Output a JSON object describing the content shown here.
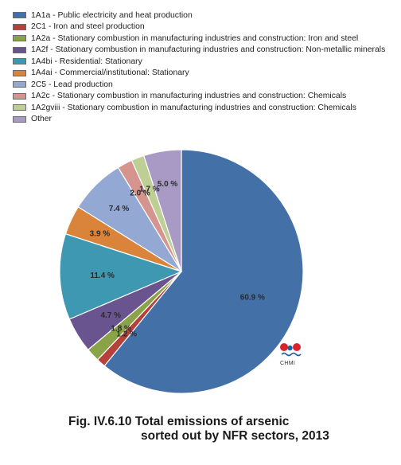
{
  "chart_data": {
    "type": "pie",
    "legend_position": "top",
    "categories": [
      "1A1a - Public electricity and heat production",
      "2C1 - Iron and steel production",
      "1A2a - Stationary combustion in manufacturing industries and construction: Iron and steel",
      "1A2f - Stationary combustion in manufacturing industries and construction: Non-metallic minerals",
      "1A4bi - Residential: Stationary",
      "1A4ai - Commercial/institutional: Stationary",
      "2C5 - Lead production",
      "1A2c - Stationary combustion in manufacturing industries and construction: Chemicals",
      "1A2gviii - Stationary combustion in manufacturing industries and construction: Chemicals",
      "Other"
    ],
    "values": [
      60.9,
      1.2,
      1.8,
      4.7,
      11.4,
      3.9,
      7.4,
      2.0,
      1.7,
      5.0
    ],
    "value_labels": [
      "60.9 %",
      "1.2 %",
      "1.8 %",
      "4.7 %",
      "11.4 %",
      "3.9 %",
      "7.4 %",
      "2.0 %",
      "1.7 %",
      "5.0 %"
    ],
    "colors": [
      "#4470a8",
      "#b5403c",
      "#8aa348",
      "#6a5490",
      "#3f98b1",
      "#d9843a",
      "#93a9d3",
      "#d6948f",
      "#bdcf95",
      "#a99ac5"
    ]
  },
  "logo": {
    "text": "CHMI"
  },
  "caption": {
    "line1": "Fig. IV.6.10  Total emissions of arsenic",
    "line2": "sorted out by NFR sectors, 2013"
  }
}
